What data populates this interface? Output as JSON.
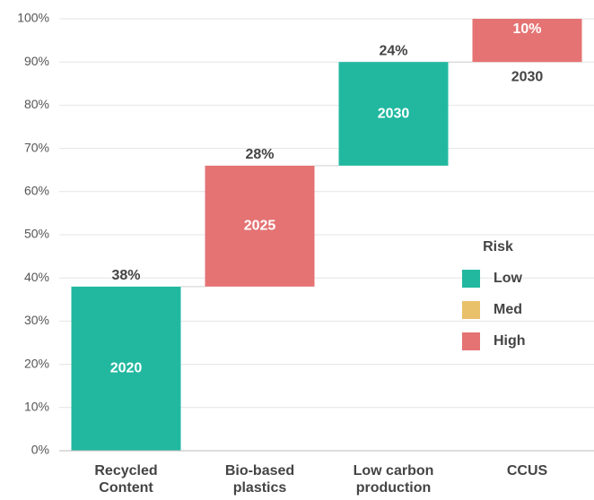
{
  "chart_data": {
    "type": "waterfall",
    "categories": [
      "Recycled\nContent",
      "Bio-based\nplastics",
      "Low carbon\nproduction",
      "CCUS"
    ],
    "values": [
      38,
      28,
      24,
      10
    ],
    "value_labels": [
      "38%",
      "28%",
      "24%",
      "10%"
    ],
    "bar_labels": [
      "2020",
      "2025",
      "2030",
      "2030"
    ],
    "colors": [
      "#22b8a0",
      "#e57373",
      "#22b8a0",
      "#e57373"
    ],
    "ylim": [
      0,
      100
    ],
    "yticks": [
      {
        "value": 0,
        "label": "0%"
      },
      {
        "value": 10,
        "label": "10%"
      },
      {
        "value": 20,
        "label": "20%"
      },
      {
        "value": 30,
        "label": "30%"
      },
      {
        "value": 40,
        "label": "40%"
      },
      {
        "value": 50,
        "label": "50%"
      },
      {
        "value": 60,
        "label": "60%"
      },
      {
        "value": 70,
        "label": "70%"
      },
      {
        "value": 80,
        "label": "80%"
      },
      {
        "value": 90,
        "label": "90%"
      },
      {
        "value": 100,
        "label": "100%"
      }
    ],
    "grid": true,
    "legend": {
      "title": "Risk",
      "position": "right",
      "items": [
        {
          "name": "Low",
          "color": "#22b8a0"
        },
        {
          "name": "Med",
          "color": "#e8c16a"
        },
        {
          "name": "High",
          "color": "#e57373"
        }
      ]
    }
  }
}
